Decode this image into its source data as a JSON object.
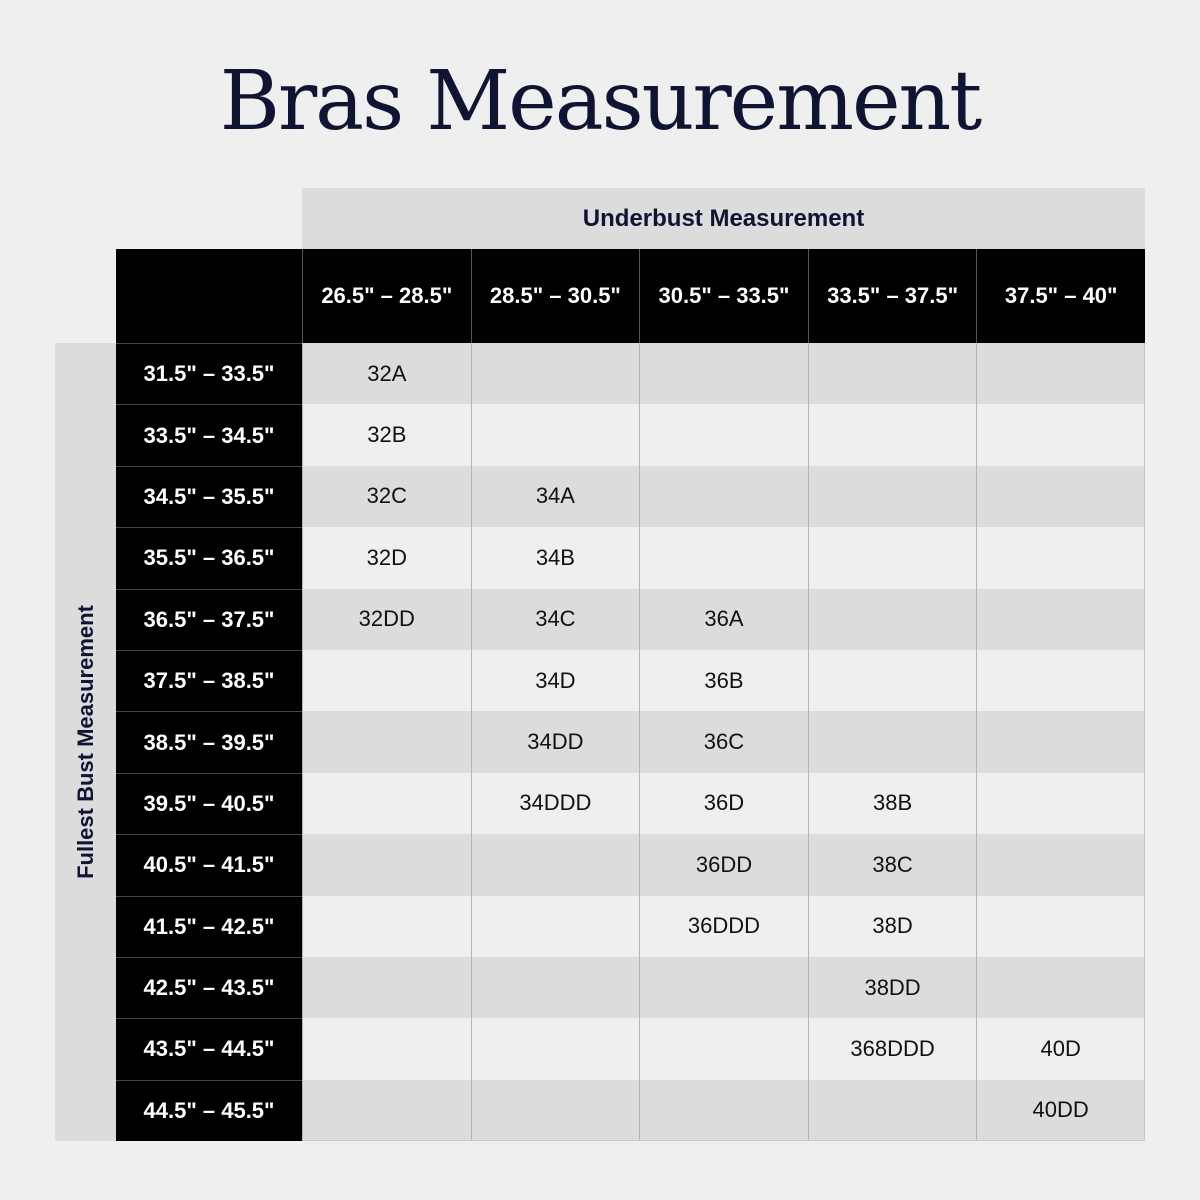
{
  "title": "Bras Measurement",
  "column_group_label": "Underbust Measurement",
  "row_group_label": "Fullest Bust Measurement",
  "columns": [
    "26.5\" – 28.5\"",
    "28.5\" – 30.5\"",
    "30.5\" – 33.5\"",
    "33.5\" – 37.5\"",
    "37.5\" – 40\""
  ],
  "rows": [
    {
      "label": "31.5\" – 33.5\"",
      "cells": [
        "32A",
        "",
        "",
        "",
        ""
      ]
    },
    {
      "label": "33.5\" – 34.5\"",
      "cells": [
        "32B",
        "",
        "",
        "",
        ""
      ]
    },
    {
      "label": "34.5\" – 35.5\"",
      "cells": [
        "32C",
        "34A",
        "",
        "",
        ""
      ]
    },
    {
      "label": "35.5\" – 36.5\"",
      "cells": [
        "32D",
        "34B",
        "",
        "",
        ""
      ]
    },
    {
      "label": "36.5\" – 37.5\"",
      "cells": [
        "32DD",
        "34C",
        "36A",
        "",
        ""
      ]
    },
    {
      "label": "37.5\" – 38.5\"",
      "cells": [
        "",
        "34D",
        "36B",
        "",
        ""
      ]
    },
    {
      "label": "38.5\" – 39.5\"",
      "cells": [
        "",
        "34DD",
        "36C",
        "",
        ""
      ]
    },
    {
      "label": "39.5\" – 40.5\"",
      "cells": [
        "",
        "34DDD",
        "36D",
        "38B",
        ""
      ]
    },
    {
      "label": "40.5\" – 41.5\"",
      "cells": [
        "",
        "",
        "36DD",
        "38C",
        ""
      ]
    },
    {
      "label": "41.5\" – 42.5\"",
      "cells": [
        "",
        "",
        "36DDD",
        "38D",
        ""
      ]
    },
    {
      "label": "42.5\" – 43.5\"",
      "cells": [
        "",
        "",
        "",
        "38DD",
        ""
      ]
    },
    {
      "label": "43.5\" – 44.5\"",
      "cells": [
        "",
        "",
        "",
        "368DDD",
        "40D"
      ]
    },
    {
      "label": "44.5\" – 45.5\"",
      "cells": [
        "",
        "",
        "",
        "",
        "40DD"
      ]
    }
  ]
}
